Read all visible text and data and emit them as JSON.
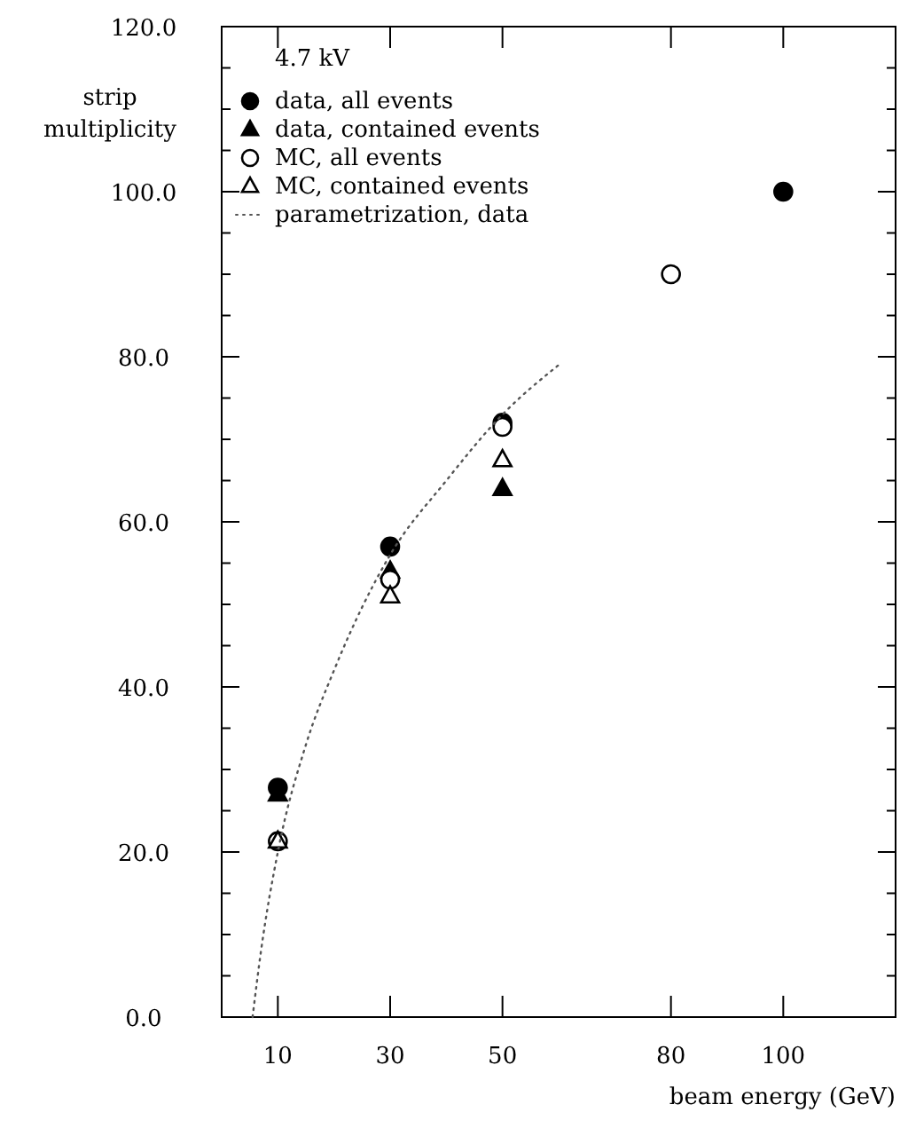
{
  "chart_data": {
    "type": "scatter",
    "xlabel": "beam energy (GeV)",
    "ylabel": "strip multiplicity",
    "legend_title": "4.7 kV",
    "legend": "top left",
    "xlim": [
      0,
      120
    ],
    "xticks": [
      10,
      30,
      50,
      80,
      100
    ],
    "ylim": [
      0,
      120
    ],
    "yticks": [
      {
        "value": 0,
        "label": "0.0"
      },
      {
        "value": 5,
        "label": null
      },
      {
        "value": 10,
        "label": null
      },
      {
        "value": 15,
        "label": null
      },
      {
        "value": 20,
        "label": "20.0"
      },
      {
        "value": 25,
        "label": null
      },
      {
        "value": 30,
        "label": null
      },
      {
        "value": 35,
        "label": null
      },
      {
        "value": 40,
        "label": "40.0"
      },
      {
        "value": 45,
        "label": null
      },
      {
        "value": 50,
        "label": null
      },
      {
        "value": 55,
        "label": null
      },
      {
        "value": 60,
        "label": "60.0"
      },
      {
        "value": 65,
        "label": null
      },
      {
        "value": 70,
        "label": null
      },
      {
        "value": 75,
        "label": null
      },
      {
        "value": 80,
        "label": "80.0"
      },
      {
        "value": 85,
        "label": null
      },
      {
        "value": 90,
        "label": null
      },
      {
        "value": 95,
        "label": null
      },
      {
        "value": 100,
        "label": "100.0"
      },
      {
        "value": 105,
        "label": null
      },
      {
        "value": 110,
        "label": null
      },
      {
        "value": 115,
        "label": null
      },
      {
        "value": 120,
        "label": "120.0"
      }
    ],
    "grid": false,
    "series": [
      {
        "name": "data, all events",
        "color": "#000000",
        "marker": "circle",
        "x": [
          10,
          30,
          50,
          100
        ],
        "values": [
          27.8,
          57,
          72,
          100
        ]
      },
      {
        "name": "data, contained events",
        "color": "#000000",
        "marker": "triangle",
        "x": [
          10,
          30,
          50
        ],
        "values": [
          27,
          54,
          64
        ]
      },
      {
        "name": "MC, all events",
        "color": "#ffffff",
        "marker": "circle",
        "x": [
          10,
          30,
          50,
          80
        ],
        "values": [
          21.3,
          53,
          71.5,
          90
        ]
      },
      {
        "name": "MC, contained events",
        "color": "#ffffff",
        "marker": "triangle",
        "x": [
          10,
          30,
          50
        ],
        "values": [
          21.3,
          51,
          67.5
        ]
      },
      {
        "name": "parametrization, data",
        "type": "line",
        "line_style": "dotted",
        "color": "#555555",
        "x": [
          5.5,
          7,
          10,
          15,
          20,
          30,
          40,
          50,
          60
        ],
        "values": [
          0,
          8,
          20,
          33,
          42,
          56,
          65,
          73,
          79
        ]
      }
    ]
  }
}
